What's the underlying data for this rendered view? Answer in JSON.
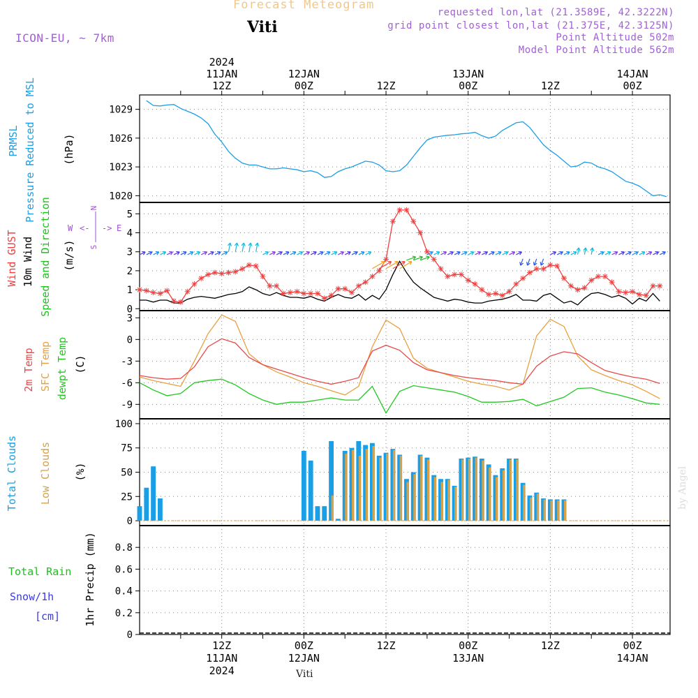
{
  "header": {
    "title": "Forecast Meteogram",
    "station": "Viti",
    "model": "ICON-EU, ~ 7km",
    "requested": "requested lon,lat (21.3589E, 42.3222N)",
    "closest": "grid point closest lon,lat (21.375E, 42.3125N)",
    "point_alt": "Point Altitude 502m",
    "model_alt": "Model Point Altitude 562m",
    "footer_station": "Viti",
    "watermark": "by Angel"
  },
  "colors": {
    "pressure": "#1a9ee6",
    "gust": "#f04040",
    "wind": "#000000",
    "dir_label": "#20c020",
    "t2m": "#e84a4a",
    "tsfc": "#e8a040",
    "dewpt": "#20c820",
    "total_clouds": "#1a9ee6",
    "low_clouds": "#d4a24a",
    "rain": "#20c020",
    "snow": "#3a3ae6",
    "compass": "#a050d0"
  },
  "time_axis": {
    "top_labels": [
      {
        "t": 12,
        "lines": [
          "2024",
          "11JAN",
          "12Z"
        ]
      },
      {
        "t": 24,
        "lines": [
          "12JAN",
          "00Z"
        ]
      },
      {
        "t": 36,
        "lines": [
          "12Z"
        ]
      },
      {
        "t": 48,
        "lines": [
          "13JAN",
          "00Z"
        ]
      },
      {
        "t": 60,
        "lines": [
          "12Z"
        ]
      },
      {
        "t": 72,
        "lines": [
          "14JAN",
          "00Z"
        ]
      }
    ],
    "bottom_labels": [
      {
        "t": 12,
        "lines": [
          "12Z",
          "11JAN",
          "2024"
        ]
      },
      {
        "t": 24,
        "lines": [
          "00Z",
          "12JAN"
        ]
      },
      {
        "t": 36,
        "lines": [
          "12Z"
        ]
      },
      {
        "t": 48,
        "lines": [
          "00Z",
          "13JAN"
        ]
      },
      {
        "t": 60,
        "lines": [
          "12Z"
        ]
      },
      {
        "t": 72,
        "lines": [
          "00Z",
          "14JAN"
        ]
      }
    ]
  },
  "panels": {
    "pressure": {
      "labels": [
        "PRMSL",
        "Pressure Reduced to MSL"
      ],
      "unit": "(hPa)"
    },
    "wind": {
      "labels": [
        "Wind GUST",
        "10m Wind",
        "Speed and Direction"
      ],
      "unit": "(m/s)",
      "compass": {
        "n": "N",
        "s": "S",
        "w": "W",
        "e": "E"
      }
    },
    "temp": {
      "labels": [
        "2m Temp",
        "SFC Temp",
        "dewpt Temp"
      ],
      "unit": "(C)"
    },
    "clouds": {
      "labels": [
        "Total Clouds",
        "Low Clouds"
      ],
      "unit": "(%)"
    },
    "precip": {
      "labels": [
        "Total Rain",
        "Snow/1h",
        "[cm]"
      ],
      "ylabel": "1hr Precip (mm)"
    }
  },
  "chart_data": [
    {
      "type": "line",
      "name": "pressure",
      "x_hours_from_11JAN00Z": [
        1,
        2,
        3,
        4,
        5,
        6,
        7,
        8,
        9,
        10,
        11,
        12,
        13,
        14,
        15,
        16,
        17,
        18,
        19,
        20,
        21,
        22,
        23,
        24,
        25,
        26,
        27,
        28,
        29,
        30,
        31,
        32,
        33,
        34,
        35,
        36,
        37,
        38,
        39,
        40,
        41,
        42,
        43,
        44,
        45,
        46,
        47,
        48,
        49,
        50,
        51,
        52,
        53,
        54,
        55,
        56,
        57,
        58,
        59,
        60,
        61,
        62,
        63,
        64,
        65,
        66,
        67,
        68,
        69,
        70,
        71,
        72,
        73,
        74,
        75,
        76,
        77
      ],
      "series": [
        {
          "values": [
            1029.9,
            1029.4,
            1029.35,
            1029.45,
            1029.5,
            1029.1,
            1028.8,
            1028.5,
            1028.1,
            1027.5,
            1026.4,
            1025.6,
            1024.6,
            1023.9,
            1023.4,
            1023.2,
            1023.2,
            1023.0,
            1022.8,
            1022.8,
            1022.9,
            1022.8,
            1022.7,
            1022.5,
            1022.6,
            1022.4,
            1021.9,
            1022.0,
            1022.5,
            1022.8,
            1023.0,
            1023.3,
            1023.6,
            1023.5,
            1023.2,
            1022.6,
            1022.5,
            1022.6,
            1023.2,
            1024.1,
            1025.0,
            1025.8,
            1026.1,
            1026.2,
            1026.3,
            1026.35,
            1026.45,
            1026.5,
            1026.6,
            1026.25,
            1026.0,
            1026.2,
            1026.8,
            1027.2,
            1027.6,
            1027.7,
            1027.1,
            1026.2,
            1025.3,
            1024.7,
            1024.2,
            1023.6,
            1023.0,
            1023.1,
            1023.5,
            1023.4,
            1023.0,
            1022.8,
            1022.5,
            1022.0,
            1021.5,
            1021.3,
            1021.0,
            1020.5,
            1020.0,
            1020.1,
            1019.9
          ]
        }
      ],
      "ylim": [
        1019.3,
        1030.5
      ],
      "yticks": [
        1020,
        1023,
        1026,
        1029
      ]
    },
    {
      "type": "line",
      "name": "wind",
      "x_hours_from_11JAN00Z": [
        0,
        1,
        2,
        3,
        4,
        5,
        6,
        7,
        8,
        9,
        10,
        11,
        12,
        13,
        14,
        15,
        16,
        17,
        18,
        19,
        20,
        21,
        22,
        23,
        24,
        25,
        26,
        27,
        28,
        29,
        30,
        31,
        32,
        33,
        34,
        35,
        36,
        37,
        38,
        39,
        40,
        41,
        42,
        43,
        44,
        45,
        46,
        47,
        48,
        49,
        50,
        51,
        52,
        53,
        54,
        55,
        56,
        57,
        58,
        59,
        60,
        61,
        62,
        63,
        64,
        65,
        66,
        67,
        68,
        69,
        70,
        71,
        72,
        73,
        74,
        75,
        76
      ],
      "series": [
        {
          "name": "Wind GUST",
          "values": [
            1.0,
            0.95,
            0.85,
            0.8,
            0.95,
            0.4,
            0.35,
            0.9,
            1.3,
            1.6,
            1.8,
            1.9,
            1.85,
            1.9,
            1.95,
            2.1,
            2.3,
            2.25,
            1.7,
            1.2,
            1.2,
            0.8,
            0.85,
            0.9,
            0.8,
            0.8,
            0.8,
            0.55,
            0.7,
            1.05,
            1.05,
            0.85,
            1.2,
            1.4,
            1.7,
            2.0,
            2.6,
            4.6,
            5.2,
            5.2,
            4.6,
            4.0,
            3.0,
            2.6,
            2.1,
            1.7,
            1.8,
            1.8,
            1.5,
            1.3,
            1.0,
            0.75,
            0.8,
            0.7,
            0.9,
            1.3,
            1.6,
            1.9,
            2.1,
            2.1,
            2.3,
            2.25,
            1.6,
            1.2,
            1.0,
            1.1,
            1.5,
            1.7,
            1.7,
            1.4,
            0.9,
            0.85,
            0.9,
            0.75,
            0.7,
            1.2,
            1.2
          ]
        },
        {
          "name": "10m Wind",
          "values": [
            0.45,
            0.45,
            0.35,
            0.45,
            0.45,
            0.3,
            0.3,
            0.5,
            0.6,
            0.65,
            0.6,
            0.55,
            0.65,
            0.75,
            0.8,
            0.9,
            1.15,
            1.0,
            0.8,
            0.7,
            0.85,
            0.7,
            0.6,
            0.6,
            0.55,
            0.65,
            0.5,
            0.4,
            0.6,
            0.75,
            0.6,
            0.55,
            0.75,
            0.45,
            0.7,
            0.5,
            1.0,
            1.8,
            2.5,
            1.9,
            1.4,
            1.1,
            0.85,
            0.6,
            0.5,
            0.4,
            0.5,
            0.45,
            0.35,
            0.3,
            0.3,
            0.4,
            0.45,
            0.5,
            0.6,
            0.75,
            0.45,
            0.45,
            0.4,
            0.7,
            0.8,
            0.55,
            0.3,
            0.4,
            0.2,
            0.55,
            0.8,
            0.85,
            0.75,
            0.6,
            0.7,
            0.55,
            0.25,
            0.55,
            0.4,
            0.8,
            0.4
          ]
        }
      ],
      "ylim": [
        -0.1,
        5.6
      ],
      "yticks": [
        0,
        1,
        2,
        3,
        4,
        5
      ],
      "barb_y": 2.85
    },
    {
      "type": "line",
      "name": "temperature",
      "x_hours_from_11JAN00Z": [
        0,
        2,
        4,
        6,
        8,
        10,
        12,
        14,
        16,
        18,
        20,
        22,
        24,
        26,
        28,
        30,
        32,
        34,
        36,
        38,
        40,
        42,
        44,
        46,
        48,
        50,
        52,
        54,
        56,
        58,
        60,
        62,
        64,
        66,
        68,
        70,
        72,
        74,
        76
      ],
      "series": [
        {
          "name": "2m Temp",
          "values": [
            -5.0,
            -5.3,
            -5.5,
            -5.4,
            -3.8,
            -1.0,
            0.1,
            -0.5,
            -2.5,
            -3.5,
            -4.1,
            -4.7,
            -5.3,
            -5.8,
            -6.2,
            -5.8,
            -5.3,
            -1.6,
            -0.8,
            -1.5,
            -3.2,
            -4.2,
            -4.6,
            -5.0,
            -5.3,
            -5.5,
            -5.7,
            -6.0,
            -6.2,
            -3.7,
            -2.3,
            -1.7,
            -2.0,
            -3.2,
            -4.3,
            -4.8,
            -5.2,
            -5.5,
            -6.1
          ]
        },
        {
          "name": "SFC Temp",
          "values": [
            -5.2,
            -5.7,
            -6.1,
            -6.5,
            -3.0,
            0.8,
            3.4,
            2.5,
            -2.0,
            -3.5,
            -4.5,
            -5.2,
            -6.0,
            -6.5,
            -7.1,
            -7.7,
            -6.5,
            -1.0,
            2.7,
            1.5,
            -2.6,
            -4.0,
            -4.6,
            -5.2,
            -5.8,
            -6.2,
            -6.5,
            -7.0,
            -6.2,
            0.5,
            2.8,
            1.8,
            -2.3,
            -4.2,
            -5.0,
            -5.7,
            -6.3,
            -7.2,
            -8.2
          ]
        },
        {
          "name": "dewpt Temp",
          "values": [
            -6.0,
            -7.0,
            -7.8,
            -7.5,
            -6.0,
            -5.7,
            -5.5,
            -6.3,
            -7.5,
            -8.4,
            -9.0,
            -8.7,
            -8.7,
            -8.4,
            -8.1,
            -8.4,
            -8.4,
            -6.5,
            -10.2,
            -7.2,
            -6.4,
            -6.7,
            -7.0,
            -7.3,
            -7.9,
            -8.7,
            -8.7,
            -8.6,
            -8.3,
            -9.2,
            -8.6,
            -8.0,
            -6.8,
            -6.7,
            -7.3,
            -7.7,
            -8.2,
            -8.8,
            -9.0
          ]
        }
      ],
      "ylim": [
        -11,
        4
      ],
      "yticks": [
        -9,
        -6,
        -3,
        0,
        3
      ]
    },
    {
      "type": "bar",
      "name": "clouds",
      "x_hours_from_11JAN00Z": [
        0,
        1,
        2,
        3,
        24,
        25,
        26,
        27,
        28,
        29,
        30,
        31,
        32,
        33,
        34,
        35,
        36,
        37,
        38,
        39,
        40,
        41,
        42,
        43,
        44,
        45,
        46,
        47,
        48,
        49,
        50,
        51,
        52,
        53,
        54,
        55,
        56,
        57,
        58,
        59,
        60,
        61,
        62
      ],
      "series": [
        {
          "name": "Total Clouds",
          "values": [
            15,
            34,
            56,
            23,
            72,
            62,
            15,
            15,
            82,
            2,
            72,
            75,
            82,
            78,
            80,
            67,
            70,
            74,
            68,
            43,
            50,
            68,
            65,
            47,
            43,
            43,
            36,
            64,
            65,
            66,
            64,
            58,
            47,
            54,
            64,
            64,
            39,
            26,
            29,
            23,
            22,
            22,
            22
          ]
        },
        {
          "name": "Low Clouds",
          "values": [
            0,
            0,
            0,
            0,
            0,
            0,
            0,
            0,
            26,
            0,
            69,
            73,
            67,
            74,
            77,
            65,
            69,
            73,
            67,
            40,
            48,
            67,
            63,
            45,
            40,
            42,
            35,
            63,
            64,
            65,
            62,
            55,
            45,
            52,
            63,
            63,
            37,
            24,
            28,
            22,
            21,
            21,
            21
          ]
        }
      ],
      "ylim": [
        -5,
        105
      ],
      "yticks": [
        0,
        25,
        50,
        75,
        100
      ]
    },
    {
      "type": "bar",
      "name": "precipitation",
      "series": [
        {
          "name": "Total Rain",
          "values": []
        },
        {
          "name": "Snow/1h",
          "values": []
        }
      ],
      "ylim": [
        0,
        1.0
      ],
      "yticks": [
        0,
        0.2,
        0.4,
        0.6,
        0.8
      ],
      "yticklabels": [
        "0",
        "0.2",
        "0.4",
        "0.6",
        "0.8"
      ]
    }
  ]
}
